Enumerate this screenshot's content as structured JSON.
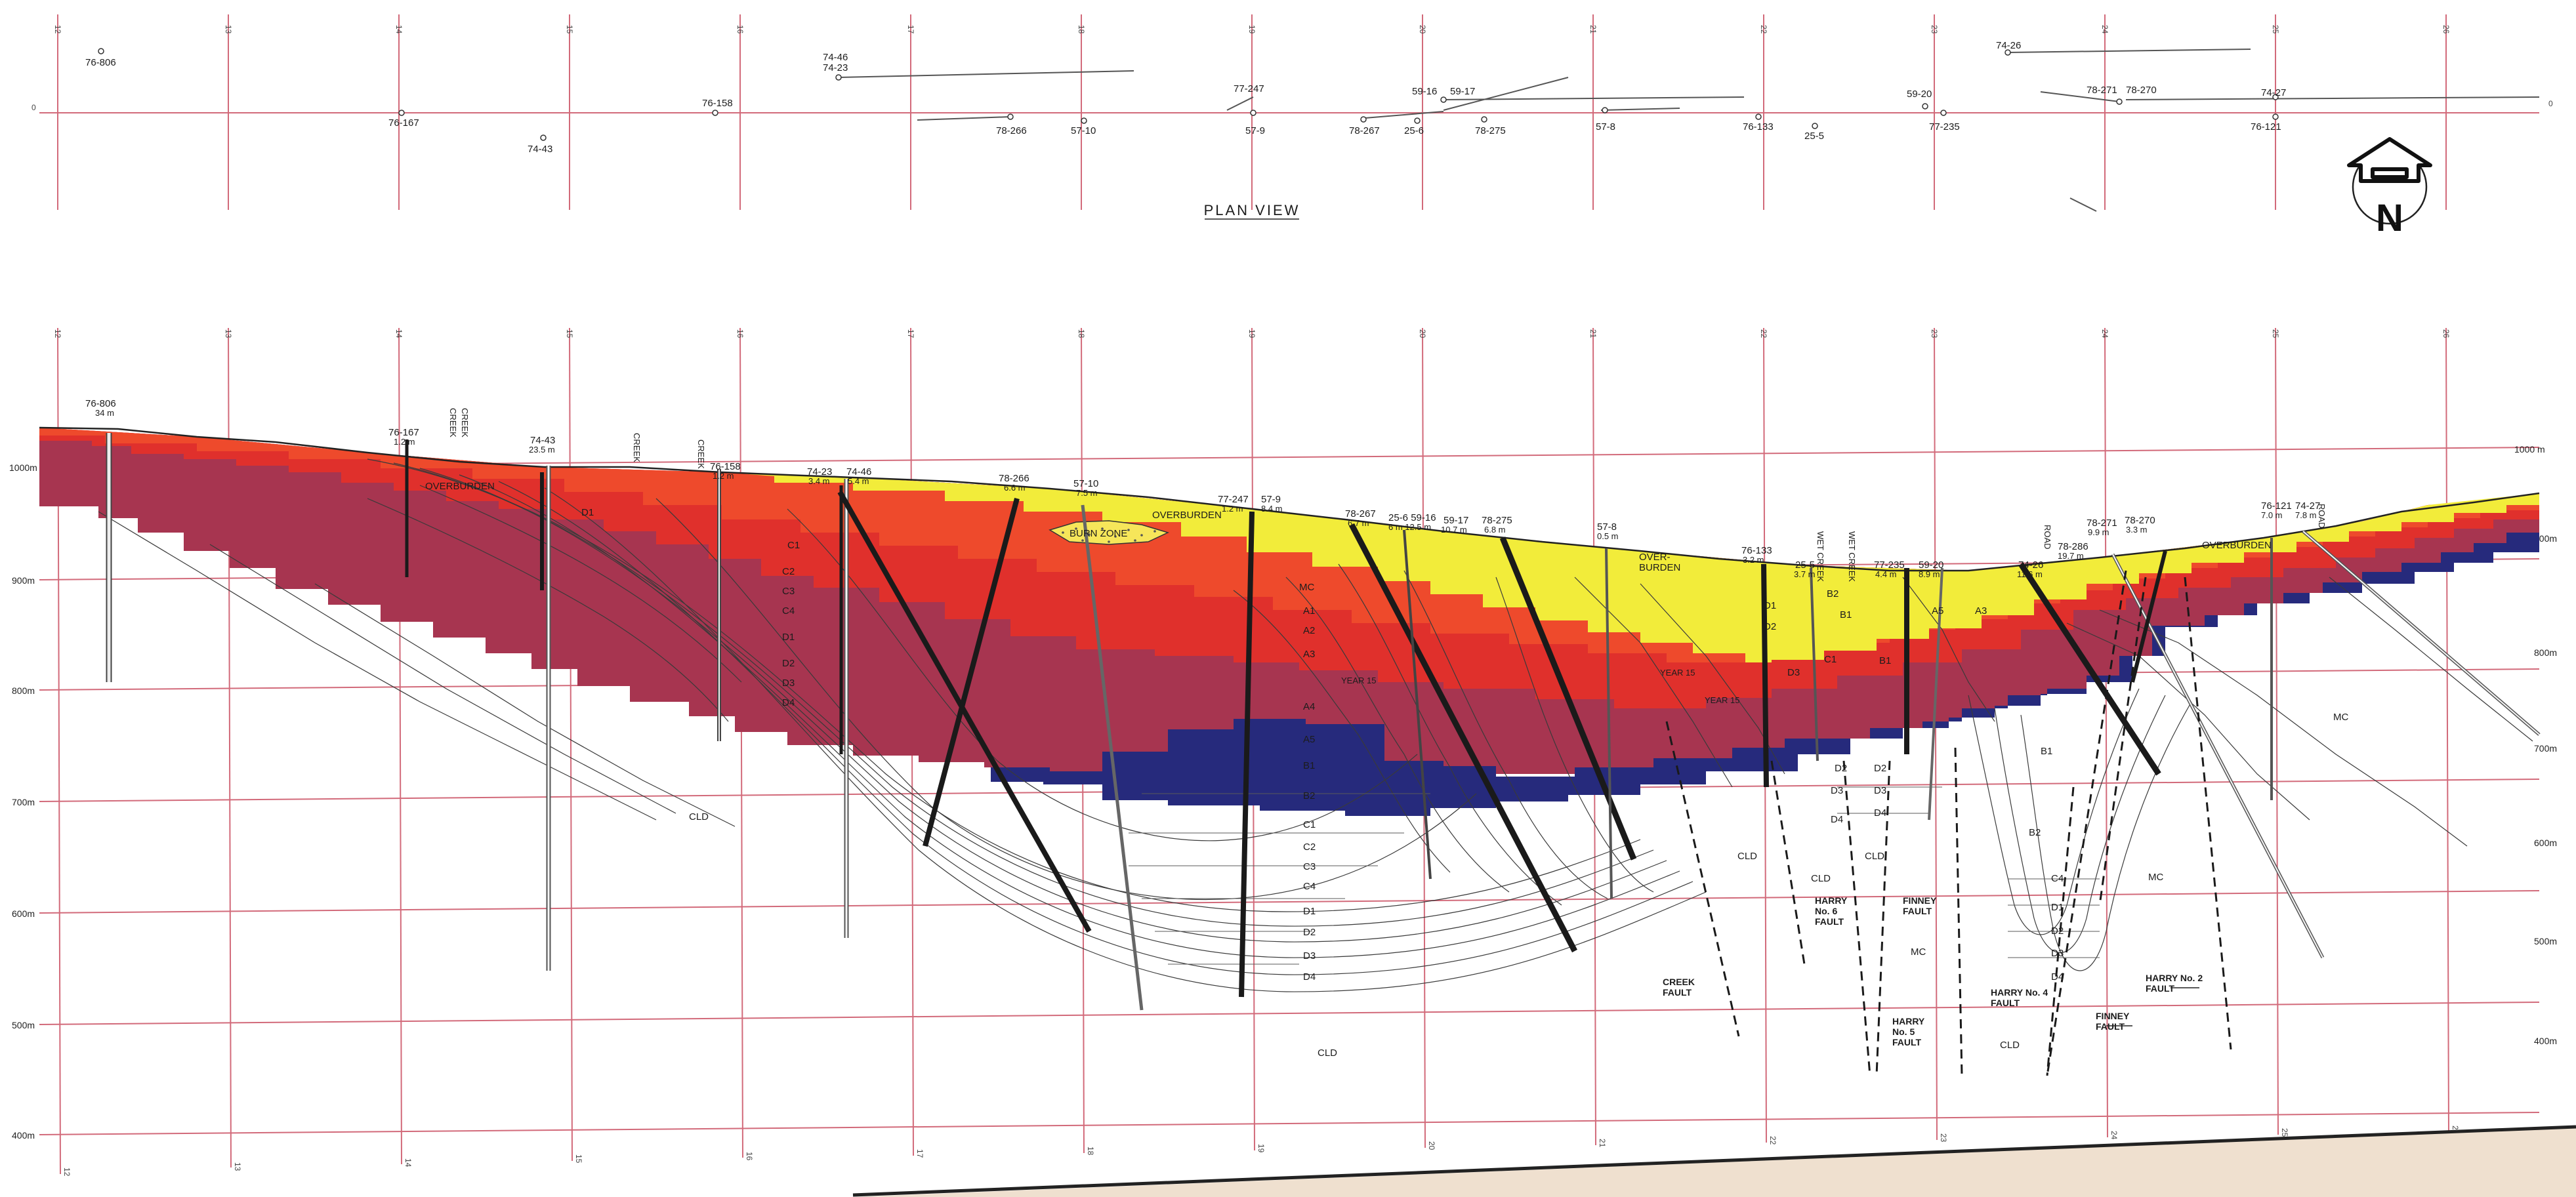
{
  "plan": {
    "title": "PLAN VIEW",
    "baseline_label": "0",
    "north_label": "N",
    "grid_labels": [
      "12",
      "13",
      "14",
      "15",
      "16",
      "17",
      "18",
      "19",
      "20",
      "21",
      "22",
      "23",
      "24",
      "25",
      "26"
    ],
    "holes": [
      {
        "id": "h-76-806",
        "label": "76-806"
      },
      {
        "id": "h-76-167",
        "label": "76-167"
      },
      {
        "id": "h-74-43",
        "label": "74-43"
      },
      {
        "id": "h-76-158",
        "label": "76-158"
      },
      {
        "id": "h-74-46",
        "label": "74-46"
      },
      {
        "id": "h-74-23",
        "label": "74-23"
      },
      {
        "id": "h-78-266",
        "label": "78-266"
      },
      {
        "id": "h-57-10",
        "label": "57-10"
      },
      {
        "id": "h-77-247",
        "label": "77-247"
      },
      {
        "id": "h-57-9",
        "label": "57-9"
      },
      {
        "id": "h-78-267",
        "label": "78-267"
      },
      {
        "id": "h-59-16",
        "label": "59-16"
      },
      {
        "id": "h-59-17",
        "label": "59-17"
      },
      {
        "id": "h-25-6",
        "label": "25-6"
      },
      {
        "id": "h-78-275",
        "label": "78-275"
      },
      {
        "id": "h-57-8",
        "label": "57-8"
      },
      {
        "id": "h-76-133",
        "label": "76-133"
      },
      {
        "id": "h-25-5",
        "label": "25-5"
      },
      {
        "id": "h-59-20",
        "label": "59-20"
      },
      {
        "id": "h-77-235",
        "label": "77-235"
      },
      {
        "id": "h-74-26",
        "label": "74-26"
      },
      {
        "id": "h-78-271",
        "label": "78-271"
      },
      {
        "id": "h-78-270",
        "label": "78-270"
      },
      {
        "id": "h-74-27",
        "label": "74-27"
      },
      {
        "id": "h-76-121",
        "label": "76-121"
      }
    ]
  },
  "section": {
    "elev_left": [
      "1000m",
      "900m",
      "800m",
      "700m",
      "600m",
      "500m",
      "400m"
    ],
    "elev_right": [
      "1000 m",
      "900m",
      "800m",
      "700m",
      "600m",
      "500m",
      "400m"
    ],
    "collars": [
      {
        "label": "76-806",
        "depth": "34 m"
      },
      {
        "label": "76-167",
        "depth": "1.2 m"
      },
      {
        "label": "74-43",
        "depth": "23.5 m"
      },
      {
        "label": "76-158",
        "depth": "1.2 m"
      },
      {
        "label": "74-23",
        "depth": "3.4 m"
      },
      {
        "label": "74-46",
        "depth": "5.4 m"
      },
      {
        "label": "78-266",
        "depth": "6.6 m"
      },
      {
        "label": "57-10",
        "depth": "7.5 m"
      },
      {
        "label": "77-247",
        "depth": "1.2 m"
      },
      {
        "label": "57-9",
        "depth": "8.4 m"
      },
      {
        "label": "78-267",
        "depth": "6.7 m"
      },
      {
        "label": "25-6 59-16",
        "depth": "6 m 12.5 m"
      },
      {
        "label": "59-17",
        "depth": "10.7 m"
      },
      {
        "label": "78-275",
        "depth": "6.8 m"
      },
      {
        "label": "57-8",
        "depth": "0.5 m"
      },
      {
        "label": "76-133",
        "depth": "3.2 m"
      },
      {
        "label": "25-5",
        "depth": "3.7 m"
      },
      {
        "label": "77-235",
        "depth": "4.4 m"
      },
      {
        "label": "59-20",
        "depth": "8.9 m"
      },
      {
        "label": "74-26",
        "depth": "11.6 m"
      },
      {
        "label": "78-286",
        "depth": "19.7 m"
      },
      {
        "label": "78-271",
        "depth": "9.9 m"
      },
      {
        "label": "78-270",
        "depth": "3.3 m"
      },
      {
        "label": "76-121",
        "depth": "7.0 m"
      },
      {
        "label": "74-27",
        "depth": "7.8 m"
      }
    ],
    "surface_notes": [
      "CREEK",
      "CREEK",
      "CREEK",
      "CREEK",
      "WET CREEK",
      "WET CREEK",
      "ROAD",
      "ROAD"
    ],
    "overburden": "OVERBURDEN",
    "overburden_split": [
      "OVER-",
      "BURDEN"
    ],
    "burn_zone": "BURN ZONE",
    "mc": "MC",
    "cld": "CLD",
    "seams": {
      "a1": "A1",
      "a2": "A2",
      "a3": "A3",
      "a4": "A4",
      "a5": "A5",
      "b1": "B1",
      "b2": "B2",
      "c1": "C1",
      "c2": "C2",
      "c3": "C3",
      "c4": "C4",
      "d1": "D1",
      "d2": "D2",
      "d3": "D3",
      "d4": "D4",
      "year": "YEAR 15"
    },
    "faults": [
      {
        "lines": [
          "HARRY",
          "No. 6",
          "FAULT"
        ]
      },
      {
        "lines": [
          "FINNEY",
          "FAULT"
        ]
      },
      {
        "lines": [
          "CREEK",
          "FAULT"
        ]
      },
      {
        "lines": [
          "HARRY",
          "No. 5",
          "FAULT"
        ]
      },
      {
        "lines": [
          "HARRY No. 4",
          "FAULT"
        ]
      },
      {
        "lines": [
          "FINNEY",
          "FAULT"
        ]
      },
      {
        "lines": [
          "HARRY No. 2",
          "FAULT"
        ]
      }
    ]
  },
  "colors": {
    "overburden": "#f2ec3a",
    "orange": "#ee4a2c",
    "red": "#e0302c",
    "maroon": "#a73550",
    "blue": "#262a7c",
    "grid": "#d26a7a",
    "ink": "#1c1c1c"
  }
}
